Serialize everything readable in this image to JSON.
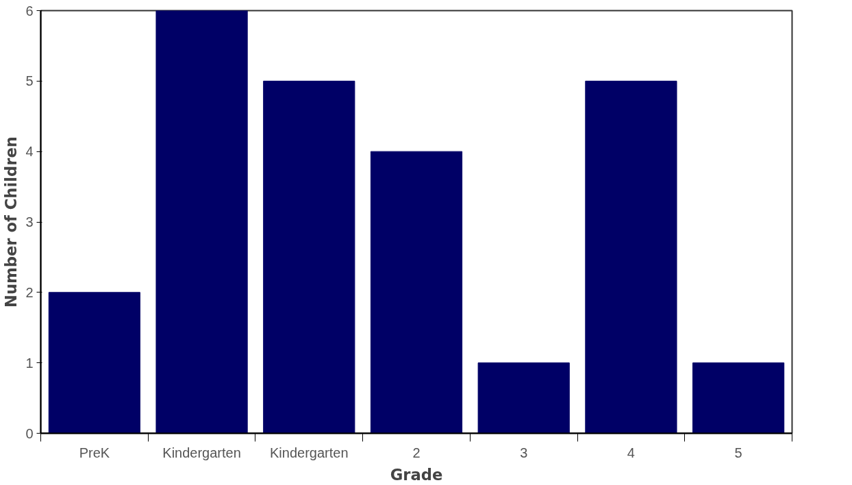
{
  "chart_data": {
    "type": "bar",
    "xlabel": "Grade",
    "ylabel": "Number of Children",
    "categories": [
      "PreK",
      "Kindergarten",
      "Kindergarten",
      "2",
      "3",
      "4",
      "5"
    ],
    "values": [
      2,
      6,
      5,
      4,
      1,
      5,
      1
    ],
    "color": "#000066",
    "ylim": [
      0,
      6
    ],
    "yticks": [
      0,
      1,
      2,
      3,
      4,
      5,
      6
    ],
    "grid": false
  }
}
